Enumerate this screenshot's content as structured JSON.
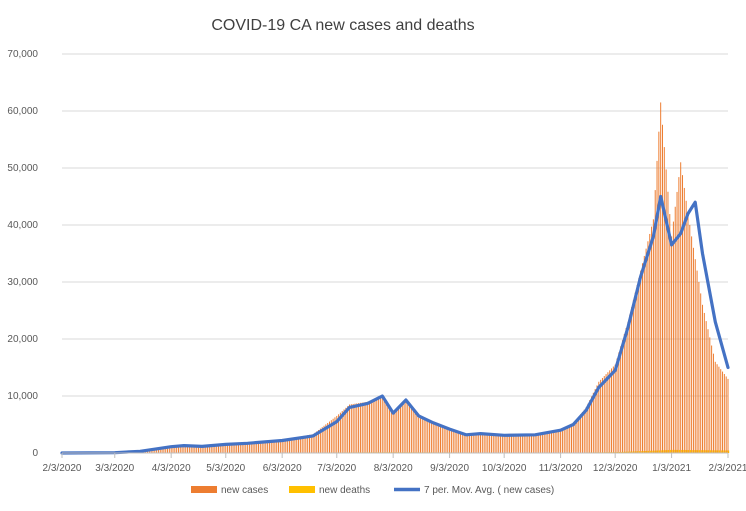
{
  "chart_data": {
    "type": "bar",
    "title": "COVID-19 CA new cases and deaths",
    "xlabel": "",
    "ylabel": "",
    "ylim": [
      0,
      70000
    ],
    "y_ticks": [
      "0",
      "10,000",
      "20,000",
      "30,000",
      "40,000",
      "50,000",
      "60,000",
      "70,000"
    ],
    "x_ticks": [
      "2/3/2020",
      "3/3/2020",
      "4/3/2020",
      "5/3/2020",
      "6/3/2020",
      "7/3/2020",
      "8/3/2020",
      "9/3/2020",
      "10/3/2020",
      "11/3/2020",
      "12/3/2020",
      "1/3/2021",
      "2/3/2021"
    ],
    "grid": "horizontal",
    "legend_position": "bottom",
    "series": [
      {
        "name": "new cases",
        "kind": "bar",
        "color": "#ED7D31",
        "points": [
          [
            "2/3/2020",
            0
          ],
          [
            "3/3/2020",
            40
          ],
          [
            "3/17/2020",
            250
          ],
          [
            "4/3/2020",
            1100
          ],
          [
            "4/10/2020",
            1350
          ],
          [
            "4/20/2020",
            1150
          ],
          [
            "5/3/2020",
            1600
          ],
          [
            "5/15/2020",
            1800
          ],
          [
            "6/3/2020",
            2300
          ],
          [
            "6/20/2020",
            3300
          ],
          [
            "7/3/2020",
            6500
          ],
          [
            "7/10/2020",
            8500
          ],
          [
            "7/20/2020",
            9000
          ],
          [
            "7/28/2020",
            9800
          ],
          [
            "8/3/2020",
            7000
          ],
          [
            "8/10/2020",
            9500
          ],
          [
            "8/17/2020",
            6200
          ],
          [
            "8/25/2020",
            5200
          ],
          [
            "9/3/2020",
            4200
          ],
          [
            "9/12/2020",
            3000
          ],
          [
            "9/20/2020",
            3500
          ],
          [
            "10/3/2020",
            3200
          ],
          [
            "10/20/2020",
            3300
          ],
          [
            "11/3/2020",
            4200
          ],
          [
            "11/10/2020",
            5200
          ],
          [
            "11/17/2020",
            8000
          ],
          [
            "11/24/2020",
            12500
          ],
          [
            "12/3/2020",
            15500
          ],
          [
            "12/10/2020",
            23000
          ],
          [
            "12/17/2020",
            32000
          ],
          [
            "12/24/2020",
            41000
          ],
          [
            "12/28/2020",
            61500
          ],
          [
            "1/3/2021",
            38000
          ],
          [
            "1/8/2021",
            51000
          ],
          [
            "1/12/2021",
            42000
          ],
          [
            "1/20/2021",
            26000
          ],
          [
            "1/27/2021",
            16000
          ],
          [
            "2/3/2021",
            13000
          ]
        ]
      },
      {
        "name": "new deaths",
        "kind": "bar",
        "color": "#FFC000",
        "points": [
          [
            "3/3/2020",
            0
          ],
          [
            "4/3/2020",
            30
          ],
          [
            "5/3/2020",
            70
          ],
          [
            "6/3/2020",
            70
          ],
          [
            "7/3/2020",
            100
          ],
          [
            "8/3/2020",
            130
          ],
          [
            "9/3/2020",
            100
          ],
          [
            "10/3/2020",
            80
          ],
          [
            "11/3/2020",
            50
          ],
          [
            "12/3/2020",
            150
          ],
          [
            "1/3/2021",
            550
          ],
          [
            "2/3/2021",
            450
          ]
        ]
      },
      {
        "name": "7 per. Mov. Avg. ( new cases)",
        "kind": "line",
        "color": "#4472C4",
        "points": [
          [
            "2/3/2020",
            0
          ],
          [
            "3/3/2020",
            50
          ],
          [
            "3/17/2020",
            300
          ],
          [
            "4/3/2020",
            1100
          ],
          [
            "4/10/2020",
            1300
          ],
          [
            "4/20/2020",
            1150
          ],
          [
            "5/3/2020",
            1500
          ],
          [
            "5/15/2020",
            1700
          ],
          [
            "6/3/2020",
            2200
          ],
          [
            "6/20/2020",
            3000
          ],
          [
            "7/3/2020",
            5500
          ],
          [
            "7/10/2020",
            8000
          ],
          [
            "7/20/2020",
            8700
          ],
          [
            "7/28/2020",
            10000
          ],
          [
            "8/3/2020",
            7000
          ],
          [
            "8/10/2020",
            9300
          ],
          [
            "8/17/2020",
            6500
          ],
          [
            "8/25/2020",
            5300
          ],
          [
            "9/3/2020",
            4200
          ],
          [
            "9/12/2020",
            3200
          ],
          [
            "9/20/2020",
            3400
          ],
          [
            "10/3/2020",
            3100
          ],
          [
            "10/20/2020",
            3200
          ],
          [
            "11/3/2020",
            4000
          ],
          [
            "11/10/2020",
            5000
          ],
          [
            "11/17/2020",
            7500
          ],
          [
            "11/24/2020",
            11500
          ],
          [
            "12/3/2020",
            14500
          ],
          [
            "12/10/2020",
            22000
          ],
          [
            "12/17/2020",
            31000
          ],
          [
            "12/24/2020",
            38000
          ],
          [
            "12/28/2020",
            45000
          ],
          [
            "1/3/2021",
            36500
          ],
          [
            "1/8/2021",
            38500
          ],
          [
            "1/12/2021",
            42000
          ],
          [
            "1/16/2021",
            44000
          ],
          [
            "1/20/2021",
            35000
          ],
          [
            "1/27/2021",
            23000
          ],
          [
            "2/3/2021",
            15000
          ]
        ]
      }
    ]
  }
}
